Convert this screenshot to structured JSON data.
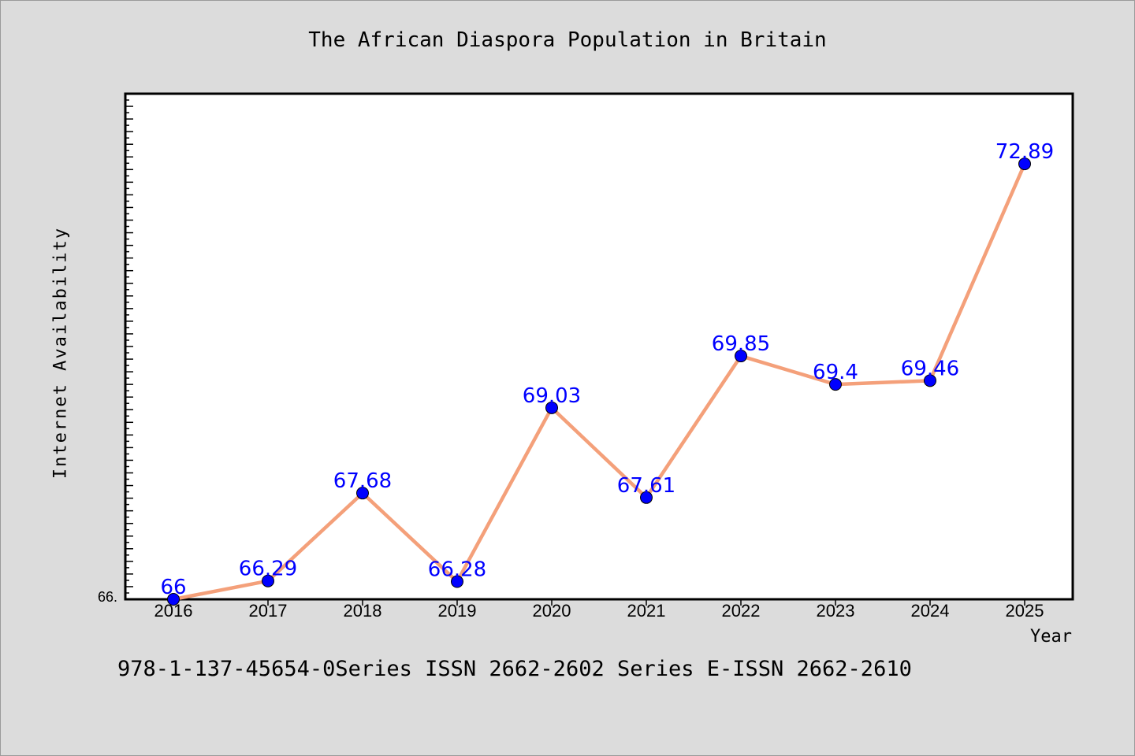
{
  "chart_data": {
    "type": "line",
    "title": "The African Diaspora Population in Britain",
    "xlabel": "Year",
    "ylabel": "Internet Availability",
    "categories": [
      "2016",
      "2017",
      "2018",
      "2019",
      "2020",
      "2021",
      "2022",
      "2023",
      "2024",
      "2025"
    ],
    "series": [
      {
        "values": [
          66,
          66.29,
          67.68,
          66.28,
          69.03,
          67.61,
          69.85,
          69.4,
          69.46,
          72.89
        ],
        "data_labels": [
          "66",
          "66.29",
          "67.68",
          "66.28",
          "69.03",
          "67.61",
          "69.85",
          "69.4",
          "69.46",
          "72.89"
        ]
      }
    ],
    "ylim": [
      66,
      74
    ],
    "y_tick_label": "66.",
    "grid": false,
    "colors": {
      "line": "#f4a07a",
      "marker": "#0000ff",
      "data_label": "#0000ff",
      "plot_background": "#ffffff",
      "page_background": "#dcdcdc"
    }
  },
  "footnote": "978-1-137-45654-0Series ISSN 2662-2602 Series E-ISSN 2662-2610"
}
